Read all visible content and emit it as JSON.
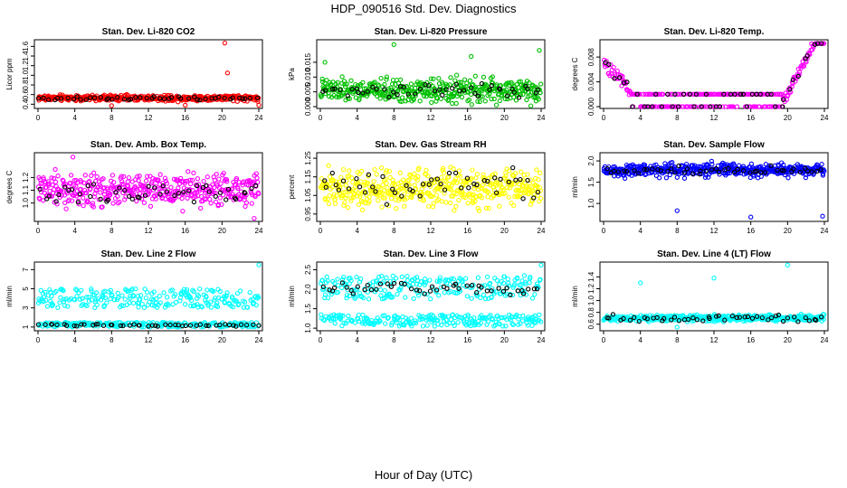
{
  "page": {
    "title": "HDP_090516  Std. Dev. Diagnostics",
    "xlabel": "Hour of Day (UTC)"
  },
  "chart_data": [
    {
      "type": "scatter",
      "title": "Stan. Dev. Li-820 CO2",
      "ylabel": "Licor ppm",
      "color": "#ff0000",
      "xlim": [
        0,
        24
      ],
      "ylim": [
        0.35,
        1.7
      ],
      "yticks": [
        "0.4",
        "0.6",
        "0.8",
        "1.0",
        "1.2",
        "1.4",
        "1.6"
      ],
      "ytick_values": [
        0.4,
        0.6,
        0.8,
        1.0,
        1.2,
        1.4,
        1.6
      ],
      "xticks": [
        "0",
        "4",
        "8",
        "12",
        "16",
        "20",
        "24"
      ],
      "series": [
        {
          "name": "all",
          "color": "#ff0000",
          "band_low": 0.44,
          "band_high": 0.62,
          "n": 420,
          "outliers": [
            [
              20.3,
              1.67
            ],
            [
              20.6,
              1.05
            ],
            [
              8.0,
              0.37
            ],
            [
              16.0,
              0.38
            ],
            [
              24.0,
              0.38
            ]
          ]
        },
        {
          "name": "hourly",
          "color": "#000000",
          "band_low": 0.46,
          "band_high": 0.58,
          "n": 48
        }
      ]
    },
    {
      "type": "scatter",
      "title": "Stan. Dev. Li-820 Pressure",
      "ylabel": "kPa",
      "color": "#00c000",
      "xlim": [
        0,
        24
      ],
      "ylim": [
        0,
        0.022
      ],
      "yticks": [
        "0.000",
        "0.005",
        "0.010",
        "0.015"
      ],
      "ytick_values": [
        0,
        0.005,
        0.01,
        0.015
      ],
      "xticks": [
        "0",
        "4",
        "8",
        "12",
        "16",
        "20",
        "24"
      ],
      "series": [
        {
          "name": "all",
          "color": "#00c000",
          "band_low": 0.0,
          "band_high": 0.011,
          "n": 420,
          "outliers": [
            [
              8.0,
              0.021
            ],
            [
              16.4,
              0.017
            ],
            [
              23.8,
              0.019
            ],
            [
              0.5,
              0.015
            ]
          ]
        },
        {
          "name": "hourly",
          "color": "#000000",
          "band_low": 0.002,
          "band_high": 0.009,
          "n": 48
        }
      ]
    },
    {
      "type": "scatter",
      "title": "Stan. Dev. Li-820 Temp.",
      "ylabel": "degrees C",
      "color": "#ff00ff",
      "xlim": [
        0,
        24
      ],
      "ylim": [
        0,
        0.0105
      ],
      "yticks": [
        "0.000",
        "0.004",
        "0.008"
      ],
      "ytick_values": [
        0,
        0.004,
        0.008
      ],
      "xticks": [
        "0",
        "4",
        "8",
        "12",
        "16",
        "20",
        "24"
      ],
      "series": [
        {
          "name": "all",
          "color": "#ff00ff",
          "pattern": "temp",
          "n": 300
        },
        {
          "name": "hourly",
          "color": "#000000",
          "pattern": "temp",
          "n": 48
        }
      ]
    },
    {
      "type": "scatter",
      "title": "Stan. Dev. Amb. Box Temp.",
      "ylabel": "degrees C",
      "color": "#ff00ff",
      "xlim": [
        0,
        24
      ],
      "ylim": [
        0.87,
        1.38
      ],
      "yticks": [
        "1.0",
        "1.1",
        "1.2"
      ],
      "ytick_values": [
        1.0,
        1.1,
        1.2
      ],
      "xticks": [
        "0",
        "4",
        "8",
        "12",
        "16",
        "20",
        "24"
      ],
      "series": [
        {
          "name": "all",
          "color": "#ff00ff",
          "band_low": 0.92,
          "band_high": 1.28,
          "n": 420,
          "outliers": [
            [
              3.8,
              1.36
            ],
            [
              23.5,
              0.88
            ]
          ]
        },
        {
          "name": "hourly",
          "color": "#000000",
          "band_low": 0.96,
          "band_high": 1.2,
          "n": 48
        }
      ]
    },
    {
      "type": "scatter",
      "title": "Stan. Dev. Gas Stream RH",
      "ylabel": "percent",
      "color": "#ffff00",
      "xlim": [
        0,
        24
      ],
      "ylim": [
        0.92,
        1.27
      ],
      "yticks": [
        "0.95",
        "1.05",
        "1.15",
        "1.25"
      ],
      "ytick_values": [
        0.95,
        1.05,
        1.15,
        1.25
      ],
      "xticks": [
        "0",
        "4",
        "8",
        "12",
        "16",
        "20",
        "24"
      ],
      "series": [
        {
          "name": "all",
          "color": "#ffff00",
          "band_low": 0.94,
          "band_high": 1.24,
          "n": 460,
          "outliers": []
        },
        {
          "name": "hourly",
          "color": "#000000",
          "band_low": 0.98,
          "band_high": 1.22,
          "n": 48
        }
      ]
    },
    {
      "type": "scatter",
      "title": "Stan. Dev. Sample Flow",
      "ylabel": "ml/min",
      "color": "#0000ff",
      "xlim": [
        0,
        24
      ],
      "ylim": [
        0.62,
        2.15
      ],
      "yticks": [
        "1.0",
        "1.5",
        "2.0"
      ],
      "ytick_values": [
        1.0,
        1.5,
        2.0
      ],
      "xticks": [
        "0",
        "4",
        "8",
        "12",
        "16",
        "20",
        "24"
      ],
      "series": [
        {
          "name": "all",
          "color": "#0000ff",
          "band_low": 1.55,
          "band_high": 2.02,
          "n": 480,
          "outliers": [
            [
              8.0,
              0.83
            ],
            [
              16.0,
              0.68
            ],
            [
              23.8,
              0.7
            ]
          ]
        },
        {
          "name": "hourly",
          "color": "#000000",
          "band_low": 1.65,
          "band_high": 1.9,
          "n": 48
        }
      ]
    },
    {
      "type": "scatter",
      "title": "Stan. Dev. Line 2 Flow",
      "ylabel": "ml/min",
      "color": "#00ffff",
      "xlim": [
        0,
        24
      ],
      "ylim": [
        0.8,
        7.6
      ],
      "yticks": [
        "1",
        "3",
        "5",
        "7"
      ],
      "ytick_values": [
        1,
        3,
        5,
        7
      ],
      "xticks": [
        "0",
        "4",
        "8",
        "12",
        "16",
        "20",
        "24"
      ],
      "series": [
        {
          "name": "all",
          "color": "#00ffff",
          "pattern": "twoband",
          "bands": [
            [
              1.0,
              1.5
            ],
            [
              3.0,
              5.0
            ]
          ],
          "n": 460,
          "outliers": [
            [
              24.0,
              7.5
            ]
          ]
        },
        {
          "name": "hourly",
          "color": "#000000",
          "band_low": 1.0,
          "band_high": 1.4,
          "n": 48
        }
      ]
    },
    {
      "type": "scatter",
      "title": "Stan. Dev. Line 3 Flow",
      "ylabel": "ml/min",
      "color": "#00ffff",
      "xlim": [
        0,
        24
      ],
      "ylim": [
        0.98,
        2.65
      ],
      "yticks": [
        "1.0",
        "1.5",
        "2.0",
        "2.5"
      ],
      "ytick_values": [
        1.0,
        1.5,
        2.0,
        2.5
      ],
      "xticks": [
        "0",
        "4",
        "8",
        "12",
        "16",
        "20",
        "24"
      ],
      "series": [
        {
          "name": "all",
          "color": "#00ffff",
          "pattern": "twoband",
          "bands": [
            [
              1.05,
              1.35
            ],
            [
              1.75,
              2.35
            ]
          ],
          "n": 460,
          "outliers": [
            [
              24.0,
              2.62
            ]
          ]
        },
        {
          "name": "hourly",
          "color": "#000000",
          "band_low": 1.8,
          "band_high": 2.25,
          "n": 48
        }
      ]
    },
    {
      "type": "scatter",
      "title": "Stan. Dev. Line 4 (LT) Flow",
      "ylabel": "ml/min",
      "color": "#00ffff",
      "xlim": [
        0,
        24
      ],
      "ylim": [
        0.52,
        1.62
      ],
      "yticks": [
        "0.6",
        "0.8",
        "1.0",
        "1.2",
        "1.4"
      ],
      "ytick_values": [
        0.6,
        0.8,
        1.0,
        1.2,
        1.4
      ],
      "xticks": [
        "0",
        "4",
        "8",
        "12",
        "16",
        "20",
        "24"
      ],
      "series": [
        {
          "name": "all",
          "color": "#00ffff",
          "band_low": 0.63,
          "band_high": 0.78,
          "n": 440,
          "outliers": [
            [
              4.0,
              1.3
            ],
            [
              12.0,
              1.38
            ],
            [
              20.0,
              1.6
            ],
            [
              8.0,
              0.55
            ]
          ]
        },
        {
          "name": "hourly",
          "color": "#000000",
          "band_low": 0.62,
          "band_high": 0.78,
          "n": 48
        }
      ]
    }
  ]
}
